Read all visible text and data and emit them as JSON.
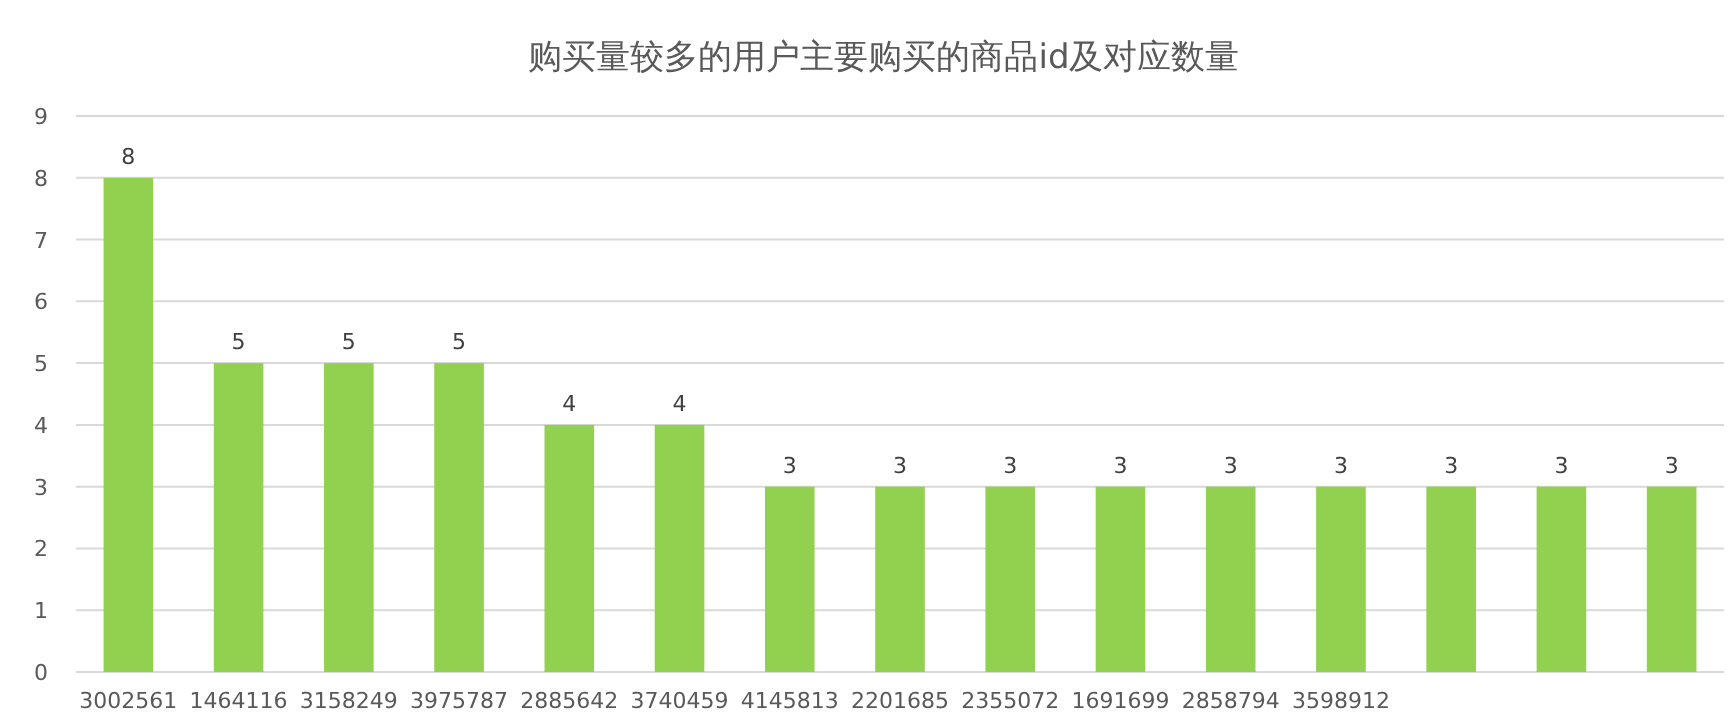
{
  "chart_data": {
    "type": "bar",
    "title": "购买量较多的用户主要购买的商品id及对应数量",
    "categories": [
      "3002561",
      "1464116",
      "3158249",
      "3975787",
      "2885642",
      "3740459",
      "4145813",
      "2201685",
      "2355072",
      "1691699",
      "2858794",
      "3598912",
      null,
      null,
      null
    ],
    "values": [
      8,
      5,
      5,
      5,
      4,
      4,
      3,
      3,
      3,
      3,
      3,
      3,
      3,
      3,
      3
    ],
    "color": "#92d050",
    "ylim": [
      0,
      9
    ],
    "yticks": [
      0,
      1,
      2,
      3,
      4,
      5,
      6,
      7,
      8,
      9
    ],
    "grid": "y",
    "data_labels": true
  }
}
